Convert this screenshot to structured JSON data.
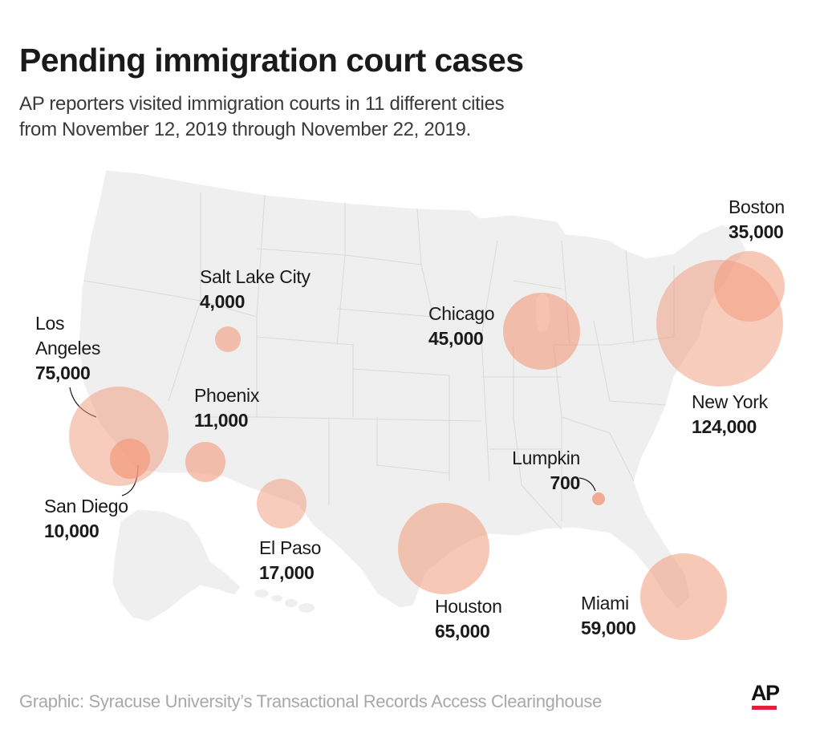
{
  "header": {
    "title": "Pending immigration court cases",
    "subtitle_line1": "AP reporters visited immigration courts in 11 different cities",
    "subtitle_line2": "from November 12, 2019 through November 22, 2019."
  },
  "cities": [
    {
      "id": "boston",
      "name": "Boston",
      "value_label": "35,000",
      "value": 35000
    },
    {
      "id": "salt-lake-city",
      "name": "Salt Lake City",
      "value_label": "4,000",
      "value": 4000
    },
    {
      "id": "chicago",
      "name": "Chicago",
      "value_label": "45,000",
      "value": 45000
    },
    {
      "id": "los-angeles",
      "name_line1": "Los",
      "name_line2": "Angeles",
      "value_label": "75,000",
      "value": 75000
    },
    {
      "id": "phoenix",
      "name": "Phoenix",
      "value_label": "11,000",
      "value": 11000
    },
    {
      "id": "new-york",
      "name": "New York",
      "value_label": "124,000",
      "value": 124000
    },
    {
      "id": "lumpkin",
      "name": "Lumpkin",
      "value_label": "700",
      "value": 700
    },
    {
      "id": "san-diego",
      "name": "San Diego",
      "value_label": "10,000",
      "value": 10000
    },
    {
      "id": "el-paso",
      "name": "El Paso",
      "value_label": "17,000",
      "value": 17000
    },
    {
      "id": "houston",
      "name": "Houston",
      "value_label": "65,000",
      "value": 65000
    },
    {
      "id": "miami",
      "name": "Miami",
      "value_label": "59,000",
      "value": 59000
    }
  ],
  "footer": {
    "source": "Graphic: Syracuse University’s Transactional Records Access Clearinghouse",
    "logo_text": "AP"
  },
  "colors": {
    "bubble_fill": "#f29a7b",
    "map_fill": "#efefef",
    "state_border": "#d9d9d9",
    "ap_red": "#e31d3c"
  }
}
